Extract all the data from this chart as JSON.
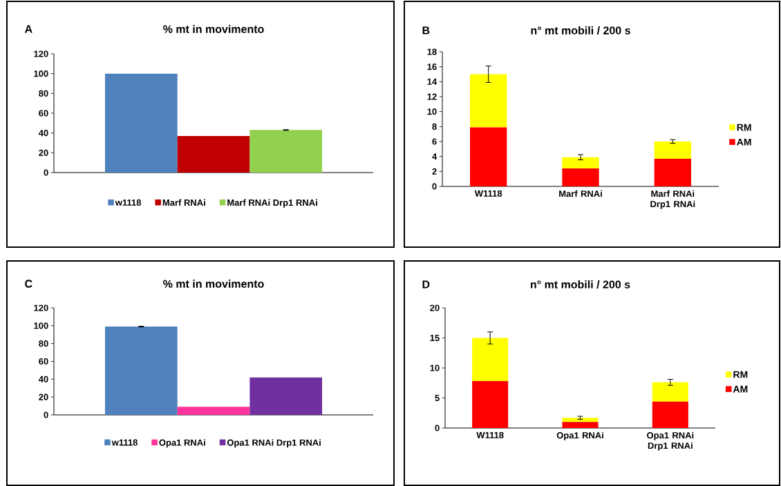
{
  "chart_data": [
    {
      "type": "bar",
      "title": "% mt in movimento",
      "annotations": [
        "A"
      ],
      "categories": [
        null
      ],
      "ylim": [
        0,
        120
      ],
      "yticks": [
        0,
        20,
        40,
        60,
        80,
        100,
        120
      ],
      "legend": "bottom",
      "series": [
        {
          "name": "w1118",
          "color": "#4f81bd",
          "values": [
            100
          ]
        },
        {
          "name": "Marf RNAi",
          "color": "#c00000",
          "values": [
            37
          ]
        },
        {
          "name": "Marf RNAi Drp1 RNAi",
          "color": "#92d050",
          "values": [
            43
          ],
          "errors": [
            0.5
          ]
        }
      ]
    },
    {
      "type": "bar",
      "title": "n° mt mobili / 200 s",
      "annotations": [
        "B"
      ],
      "categories": [
        "W1118",
        "Marf RNAi",
        "Marf RNAi Drp1 RNAi"
      ],
      "stacked": true,
      "ylim": [
        0,
        18
      ],
      "yticks": [
        0,
        2,
        4,
        6,
        8,
        10,
        12,
        14,
        16,
        18
      ],
      "legend": "right",
      "series": [
        {
          "name": "AM",
          "color": "#ff0000",
          "values": [
            7.9,
            2.4,
            3.7
          ]
        },
        {
          "name": "RM",
          "color": "#ffff00",
          "values": [
            7.1,
            1.5,
            2.3
          ],
          "errors": [
            1.1,
            0.35,
            0.25
          ]
        }
      ]
    },
    {
      "type": "bar",
      "title": "% mt in movimento",
      "annotations": [
        "C"
      ],
      "categories": [
        null
      ],
      "ylim": [
        0,
        120
      ],
      "yticks": [
        0,
        20,
        40,
        60,
        80,
        100,
        120
      ],
      "legend": "bottom",
      "series": [
        {
          "name": "w1118",
          "color": "#4f81bd",
          "values": [
            99
          ],
          "errors": [
            0.5
          ]
        },
        {
          "name": "Opa1 RNAi",
          "color": "#ff3399",
          "values": [
            9
          ]
        },
        {
          "name": "Opa1 RNAi Drp1 RNAi",
          "color": "#7030a0",
          "values": [
            42
          ]
        }
      ]
    },
    {
      "type": "bar",
      "title": "n° mt mobili / 200 s",
      "annotations": [
        "D"
      ],
      "categories": [
        "W1118",
        "Opa1 RNAi",
        "Opa1 RNAi Drp1 RNAi"
      ],
      "stacked": true,
      "ylim": [
        0,
        20
      ],
      "yticks": [
        0,
        5,
        10,
        15,
        20
      ],
      "legend": "right",
      "series": [
        {
          "name": "AM",
          "color": "#ff0000",
          "values": [
            7.8,
            1.0,
            4.4
          ]
        },
        {
          "name": "RM",
          "color": "#ffff00",
          "values": [
            7.2,
            0.7,
            3.2
          ],
          "errors": [
            1.0,
            0.25,
            0.5
          ]
        }
      ]
    }
  ]
}
